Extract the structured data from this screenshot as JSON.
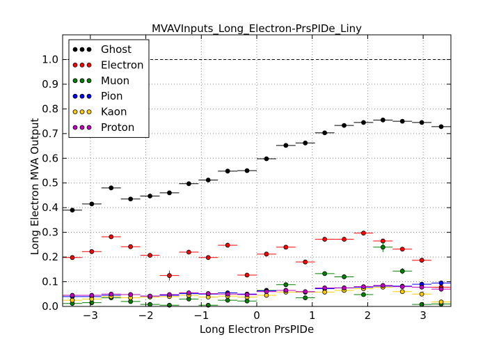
{
  "chart_data": {
    "type": "scatter",
    "title": "MVAVInputs_Long_Electron-PrsPIDe_Liny",
    "xlabel": "Long Electron PrsPIDe",
    "ylabel": "Long Electron MVA Output",
    "xlim": [
      -3.5,
      3.5
    ],
    "ylim": [
      0.0,
      1.1
    ],
    "xticks": [
      -3,
      -2,
      -1,
      0,
      1,
      2,
      3
    ],
    "xtick_labels": [
      "−3",
      "−2",
      "−1",
      "0",
      "1",
      "2",
      "3"
    ],
    "yticks": [
      0.0,
      0.1,
      0.2,
      0.3,
      0.4,
      0.5,
      0.6,
      0.7,
      0.8,
      0.9,
      1.0
    ],
    "ytick_labels": [
      "0.0",
      "0.1",
      "0.2",
      "0.3",
      "0.4",
      "0.5",
      "0.6",
      "0.7",
      "0.8",
      "0.9",
      "1.0"
    ],
    "grid": true,
    "legend_position": "top-left",
    "reference_line": {
      "y": 1.0,
      "style": "dashed"
    },
    "bin_halfwidth": 0.175,
    "x": [
      -3.325,
      -2.975,
      -2.625,
      -2.275,
      -1.925,
      -1.575,
      -1.225,
      -0.875,
      -0.525,
      -0.175,
      0.175,
      0.525,
      0.875,
      1.225,
      1.575,
      1.925,
      2.275,
      2.625,
      2.975,
      3.325
    ],
    "series": [
      {
        "name": "Ghost",
        "color": "#000000",
        "values": [
          0.39,
          0.415,
          0.48,
          0.435,
          0.447,
          0.46,
          0.497,
          0.512,
          0.548,
          0.55,
          0.598,
          0.652,
          0.662,
          0.703,
          0.733,
          0.745,
          0.755,
          0.75,
          0.745,
          0.728
        ],
        "errors": [
          0.005,
          0.005,
          0.005,
          0.005,
          0.005,
          0.005,
          0.004,
          0.004,
          0.004,
          0.004,
          0.004,
          0.004,
          0.004,
          0.004,
          0.004,
          0.004,
          0.004,
          0.004,
          0.004,
          0.004
        ]
      },
      {
        "name": "Electron",
        "color": "#ff0000",
        "values": [
          0.198,
          0.222,
          0.282,
          0.242,
          0.207,
          0.125,
          0.22,
          0.198,
          0.248,
          0.127,
          0.212,
          0.24,
          0.18,
          0.272,
          0.272,
          0.297,
          0.265,
          0.232,
          0.187,
          0.078
        ],
        "errors": [
          0.004,
          0.008,
          0.006,
          0.008,
          0.008,
          0.02,
          0.005,
          0.004,
          0.004,
          0.004,
          0.004,
          0.004,
          0.004,
          0.004,
          0.004,
          0.005,
          0.006,
          0.005,
          0.005,
          0.008
        ]
      },
      {
        "name": "Muon",
        "color": "#008000",
        "values": [
          0.012,
          0.015,
          0.035,
          0.02,
          0.008,
          0.005,
          0.03,
          0.005,
          0.025,
          0.022,
          0.065,
          0.088,
          0.035,
          0.133,
          0.12,
          0.048,
          0.24,
          0.143,
          0.008,
          0.01
        ],
        "errors": [
          0.004,
          0.006,
          0.005,
          0.008,
          0.008,
          0.006,
          0.004,
          0.008,
          0.004,
          0.004,
          0.005,
          0.005,
          0.005,
          0.005,
          0.005,
          0.006,
          0.02,
          0.012,
          0.005,
          0.006
        ]
      },
      {
        "name": "Pion",
        "color": "#0000ff",
        "values": [
          0.04,
          0.04,
          0.045,
          0.048,
          0.042,
          0.045,
          0.052,
          0.05,
          0.055,
          0.05,
          0.063,
          0.065,
          0.058,
          0.072,
          0.075,
          0.078,
          0.082,
          0.082,
          0.09,
          0.095
        ],
        "errors": [
          0.002,
          0.002,
          0.002,
          0.002,
          0.002,
          0.002,
          0.002,
          0.002,
          0.002,
          0.002,
          0.002,
          0.002,
          0.002,
          0.002,
          0.002,
          0.002,
          0.002,
          0.002,
          0.002,
          0.002
        ]
      },
      {
        "name": "Kaon",
        "color": "#ffcc00",
        "values": [
          0.025,
          0.03,
          0.04,
          0.035,
          0.038,
          0.04,
          0.045,
          0.038,
          0.042,
          0.038,
          0.045,
          0.058,
          0.058,
          0.058,
          0.065,
          0.072,
          0.078,
          0.06,
          0.05,
          0.018
        ],
        "errors": [
          0.004,
          0.004,
          0.004,
          0.004,
          0.004,
          0.004,
          0.004,
          0.004,
          0.004,
          0.004,
          0.004,
          0.004,
          0.004,
          0.004,
          0.004,
          0.004,
          0.004,
          0.004,
          0.004,
          0.006
        ]
      },
      {
        "name": "Proton",
        "color": "#bf00bf",
        "values": [
          0.045,
          0.045,
          0.05,
          0.048,
          0.042,
          0.048,
          0.055,
          0.052,
          0.05,
          0.048,
          0.06,
          0.065,
          0.06,
          0.075,
          0.075,
          0.08,
          0.085,
          0.08,
          0.078,
          0.07
        ],
        "errors": [
          0.003,
          0.003,
          0.003,
          0.003,
          0.003,
          0.003,
          0.003,
          0.003,
          0.003,
          0.003,
          0.003,
          0.003,
          0.003,
          0.003,
          0.003,
          0.003,
          0.003,
          0.003,
          0.003,
          0.01
        ]
      }
    ]
  }
}
